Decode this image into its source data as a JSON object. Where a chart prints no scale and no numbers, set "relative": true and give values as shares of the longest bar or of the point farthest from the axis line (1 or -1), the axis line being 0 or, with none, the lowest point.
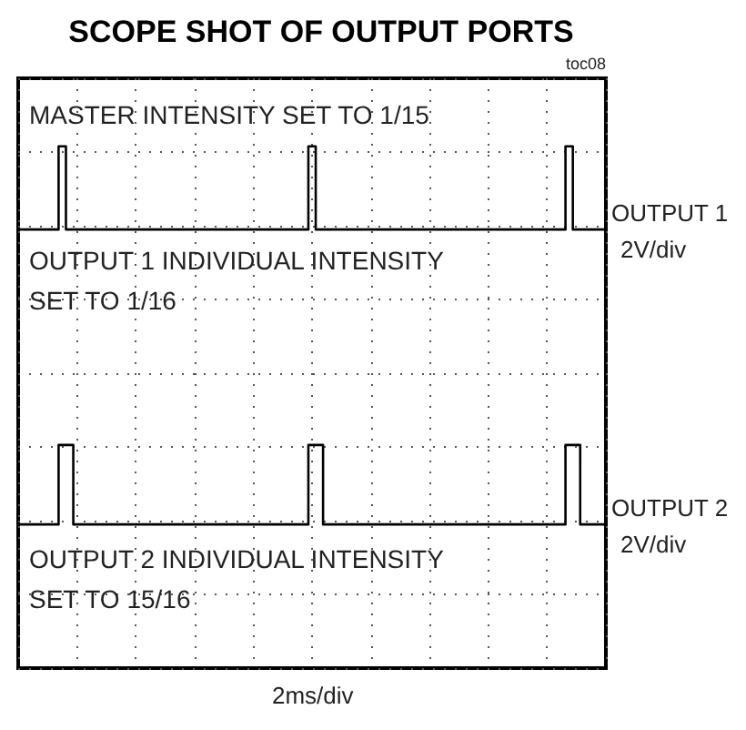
{
  "chart_data": {
    "type": "step",
    "title": "SCOPE SHOT OF OUTPUT PORTS",
    "relative": true,
    "grid": true,
    "legend": false,
    "line_style": "solid",
    "categories": [
      null,
      null,
      null,
      null,
      null,
      null,
      null,
      null,
      null,
      null,
      null,
      null,
      null,
      null,
      null,
      null,
      null,
      null,
      null,
      null,
      null,
      null,
      null,
      null,
      null,
      null,
      null,
      null,
      null,
      null,
      null,
      null,
      null,
      null,
      null,
      null,
      null,
      null,
      null,
      null,
      null,
      null,
      null,
      null,
      null,
      null,
      null,
      null,
      null,
      null,
      null,
      null,
      null,
      null,
      null,
      null,
      null,
      null,
      null,
      null,
      null,
      null,
      null,
      null,
      null,
      null,
      null,
      null,
      null,
      null,
      null,
      null,
      null,
      null,
      null,
      null,
      null,
      null,
      null,
      null,
      null
    ],
    "annotations": [
      "toc08",
      "MASTER INTENSITY SET TO 1/15",
      "OUTPUT 1 INDIVIDUAL INTENSITY SET TO 1/16",
      "OUTPUT 2 INDIVIDUAL INTENSITY SET TO 15/16",
      "2V/div",
      "2V/div",
      "2ms/div"
    ],
    "series": [
      {
        "name": "OUTPUT 1",
        "color": "#000000",
        "values": [
          0.78,
          0.78,
          0.78,
          0.78,
          0.78,
          0.78,
          1,
          0.78,
          0.78,
          0.78,
          0.78,
          0.78,
          0.78,
          0.78,
          0.78,
          0.78,
          0.78,
          0.78,
          0.78,
          0.78,
          0.78,
          0.78,
          0.78,
          0.78,
          0.78,
          0.78,
          0.78,
          0.78,
          0.78,
          0.78,
          0.78,
          0.78,
          0.78,
          0.78,
          0.78,
          0.78,
          0.78,
          0.78,
          0.78,
          0.78,
          1,
          0.78,
          0.78,
          0.78,
          0.78,
          0.78,
          0.78,
          0.78,
          0.78,
          0.78,
          0.78,
          0.78,
          0.78,
          0.78,
          0.78,
          0.78,
          0.78,
          0.78,
          0.78,
          0.78,
          0.78,
          0.78,
          0.78,
          0.78,
          0.78,
          0.78,
          0.78,
          0.78,
          0.78,
          0.78,
          0.78,
          0.78,
          0.78,
          0.78,
          0.78,
          1,
          0.78,
          0.78,
          0.78,
          0.78,
          0.78
        ]
      },
      {
        "name": "OUTPUT 2",
        "color": "#000000",
        "values": [
          0,
          0,
          0,
          0,
          0,
          0,
          0.21,
          0.21,
          0,
          0,
          0,
          0,
          0,
          0,
          0,
          0,
          0,
          0,
          0,
          0,
          0,
          0,
          0,
          0,
          0,
          0,
          0,
          0,
          0,
          0,
          0,
          0,
          0,
          0,
          0,
          0,
          0,
          0,
          0,
          0,
          0.21,
          0.21,
          0,
          0,
          0,
          0,
          0,
          0,
          0,
          0,
          0,
          0,
          0,
          0,
          0,
          0,
          0,
          0,
          0,
          0,
          0,
          0,
          0,
          0,
          0,
          0,
          0,
          0,
          0,
          0,
          0,
          0,
          0,
          0,
          0,
          0.21,
          0.21,
          0,
          0,
          0,
          0
        ]
      }
    ]
  }
}
